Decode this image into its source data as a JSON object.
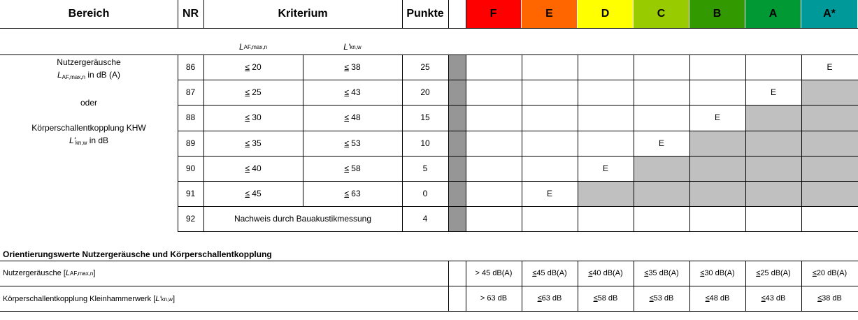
{
  "header": {
    "bereich": "Bereich",
    "nr": "NR",
    "kriterium": "Kriterium",
    "punkte": "Punkte",
    "grades": [
      {
        "label": "F",
        "color": "#ff0000"
      },
      {
        "label": "E",
        "color": "#ff6600"
      },
      {
        "label": "D",
        "color": "#ffff00"
      },
      {
        "label": "C",
        "color": "#99cc00"
      },
      {
        "label": "B",
        "color": "#339900"
      },
      {
        "label": "A",
        "color": "#009933"
      },
      {
        "label": "A*",
        "color": "#009999"
      }
    ]
  },
  "subheader": {
    "col1_main": "L",
    "col1_sub": "AF,max,n",
    "col2_main": "L'",
    "col2_sub": "kn,w"
  },
  "area": {
    "line1": "Nutzergeräusche",
    "line2_main": "L",
    "line2_sub": "AF,max,n",
    "line2_rest": " in dB (A)",
    "line3": "oder",
    "line4": "Körperschallentkopplung KHW",
    "line5_main": "L'",
    "line5_sub": "kn,w",
    "line5_rest": " in dB"
  },
  "rows": [
    {
      "nr": "86",
      "le": "≤",
      "v1": "20",
      "v2": "38",
      "punkte": "25",
      "grade_col": 6
    },
    {
      "nr": "87",
      "le": "≤",
      "v1": "25",
      "v2": "43",
      "punkte": "20",
      "grade_col": 5
    },
    {
      "nr": "88",
      "le": "≤",
      "v1": "30",
      "v2": "48",
      "punkte": "15",
      "grade_col": 4
    },
    {
      "nr": "89",
      "le": "≤",
      "v1": "35",
      "v2": "53",
      "punkte": "10",
      "grade_col": 3
    },
    {
      "nr": "90",
      "le": "≤",
      "v1": "40",
      "v2": "58",
      "punkte": "5",
      "grade_col": 2
    },
    {
      "nr": "91",
      "le": "≤",
      "v1": "45",
      "v2": "63",
      "punkte": "0",
      "grade_col": 1
    }
  ],
  "mark": "E",
  "row92": {
    "nr": "92",
    "text": "Nachweis durch Bauakustikmessung",
    "punkte": "4"
  },
  "orientation": {
    "title": "Orientierungswerte Nutzergeräusche und Körperschallentkopplung",
    "row1_label": "Nutzergeräusche [",
    "row1_main": "L",
    "row1_sub": "AF,max,n",
    "row1_end": "]",
    "row1_values": [
      "> 45 dB(A)",
      "≤ 45 dB(A)",
      "≤ 40 dB(A)",
      "≤ 35 dB(A)",
      "≤ 30 dB(A)",
      "≤ 25 dB(A)",
      "≤ 20 dB(A)"
    ],
    "row2_label": "Körperschallentkopplung Kleinhammerwerk [",
    "row2_main": "L'",
    "row2_sub": "kn,w",
    "row2_end": "]",
    "row2_values": [
      "> 63 dB",
      "≤ 63 dB",
      "≤ 58 dB",
      "≤ 53 dB",
      "≤ 48 dB",
      "≤ 43 dB",
      "≤ 38 dB"
    ]
  }
}
